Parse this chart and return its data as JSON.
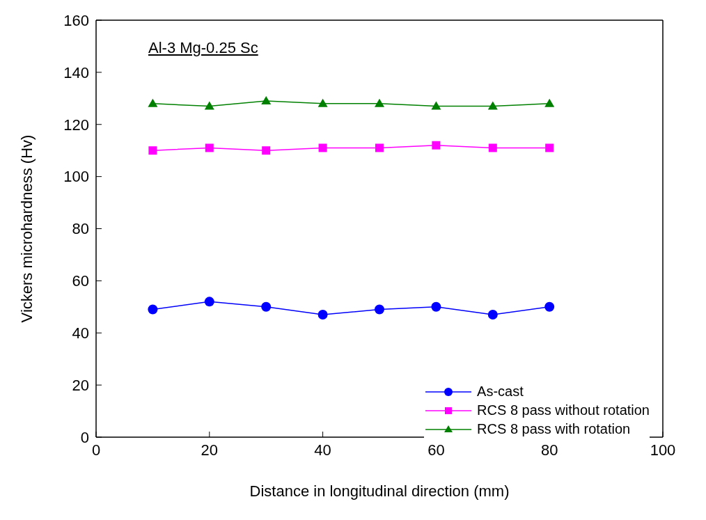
{
  "chart_data": {
    "type": "line",
    "xlabel": "Distance in longitudinal direction (mm)",
    "ylabel": "Vickers microhardness (Hv)",
    "annotations": [
      "Al-3 Mg-0.25 Sc"
    ],
    "x": [
      10,
      20,
      30,
      40,
      50,
      60,
      70,
      80
    ],
    "series": [
      {
        "name": "As-cast",
        "color": "#0000ff",
        "marker": "circle",
        "values": [
          49,
          52,
          50,
          47,
          49,
          50,
          47,
          50
        ]
      },
      {
        "name": "RCS 8 pass without rotation",
        "color": "#ff00ff",
        "marker": "square",
        "values": [
          110,
          111,
          110,
          111,
          111,
          112,
          111,
          111
        ]
      },
      {
        "name": "RCS 8 pass with rotation",
        "color": "#008000",
        "marker": "triangle",
        "values": [
          128,
          127,
          129,
          128,
          128,
          127,
          127,
          128
        ]
      }
    ],
    "xlim": [
      0,
      100
    ],
    "xticks": [
      0,
      20,
      40,
      60,
      80,
      100
    ],
    "ylim": [
      0,
      160
    ],
    "yticks": [
      0,
      20,
      40,
      60,
      80,
      100,
      120,
      140,
      160
    ],
    "grid": false,
    "legend": "bottom right",
    "line_style": "solid"
  }
}
